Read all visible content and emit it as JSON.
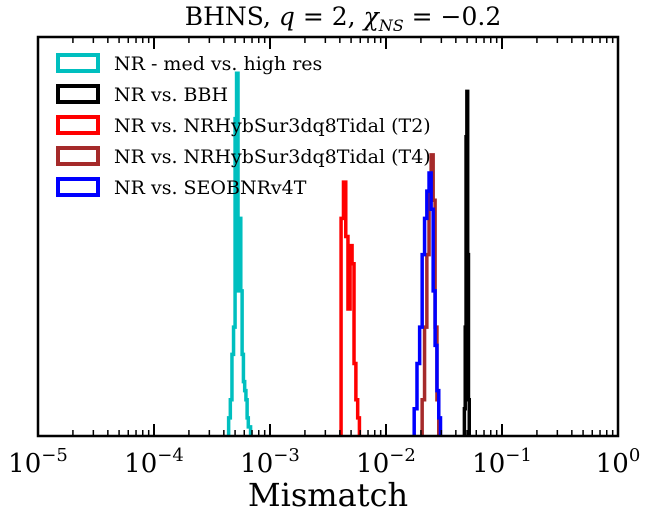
{
  "chart_data": {
    "type": "histogram",
    "title": "BHNS, q = 2, χNS = −0.2",
    "title_parts": {
      "name": "BHNS, ",
      "q": "q",
      "q_eq": " = 2, ",
      "chi": "χ",
      "chi_sub": "NS",
      "chi_eq": " = −0.2"
    },
    "xlabel": "Mismatch",
    "ylabel": "",
    "xscale": "log",
    "xlim": [
      1e-05,
      1
    ],
    "ylim": [
      0,
      44
    ],
    "xticks": [
      {
        "value": 1e-05,
        "base": "10",
        "exp": "−5"
      },
      {
        "value": 0.0001,
        "base": "10",
        "exp": "−4"
      },
      {
        "value": 0.001,
        "base": "10",
        "exp": "−3"
      },
      {
        "value": 0.01,
        "base": "10",
        "exp": "−2"
      },
      {
        "value": 0.1,
        "base": "10",
        "exp": "−1"
      },
      {
        "value": 1,
        "base": "10",
        "exp": "0"
      }
    ],
    "legend_position": "upper-left",
    "series": [
      {
        "name": "NR - med vs. high res",
        "color": "#00BFBF",
        "bin_edges": [
          0.00044,
          0.000455,
          0.00047,
          0.000485,
          0.0005,
          0.000515,
          0.00053,
          0.000545,
          0.00056,
          0.000575,
          0.00059,
          0.000605,
          0.00062,
          0.000635,
          0.00065,
          0.00068
        ],
        "counts": [
          2,
          4,
          9,
          12,
          35,
          40,
          16,
          24,
          16,
          9,
          6,
          5,
          4,
          2,
          1
        ]
      },
      {
        "name": "NR vs. BBH",
        "color": "#000000",
        "bin_edges": [
          0.0474,
          0.0482,
          0.049,
          0.0498,
          0.0506,
          0.0514,
          0.0522
        ],
        "counts": [
          3,
          12,
          33,
          38,
          20,
          4
        ]
      },
      {
        "name": "NR vs. NRHybSur3dq8Tidal (T2)",
        "color": "#FF0000",
        "bin_edges": [
          0.0041,
          0.0043,
          0.0045,
          0.0047,
          0.0049,
          0.0051,
          0.0053,
          0.0055,
          0.0057,
          0.0059
        ],
        "counts": [
          24,
          28,
          22,
          14,
          21,
          19,
          8,
          4,
          2
        ]
      },
      {
        "name": "NR vs. NRHybSur3dq8Tidal (T4)",
        "color": "#A52A2A",
        "bin_edges": [
          0.0205,
          0.0215,
          0.0225,
          0.0235,
          0.0245,
          0.0255,
          0.0265,
          0.0275,
          0.0285
        ],
        "counts": [
          4,
          12,
          20,
          27,
          31,
          26,
          12,
          4
        ]
      },
      {
        "name": "NR vs. SEOBNRv4T",
        "color": "#0000FF",
        "bin_edges": [
          0.0175,
          0.0185,
          0.0195,
          0.0205,
          0.0215,
          0.0225,
          0.0235,
          0.0245,
          0.0255,
          0.0265,
          0.0275,
          0.0285,
          0.0295
        ],
        "counts": [
          3,
          8,
          12,
          20,
          24,
          27,
          29,
          25,
          16,
          10,
          5,
          2
        ]
      }
    ]
  }
}
